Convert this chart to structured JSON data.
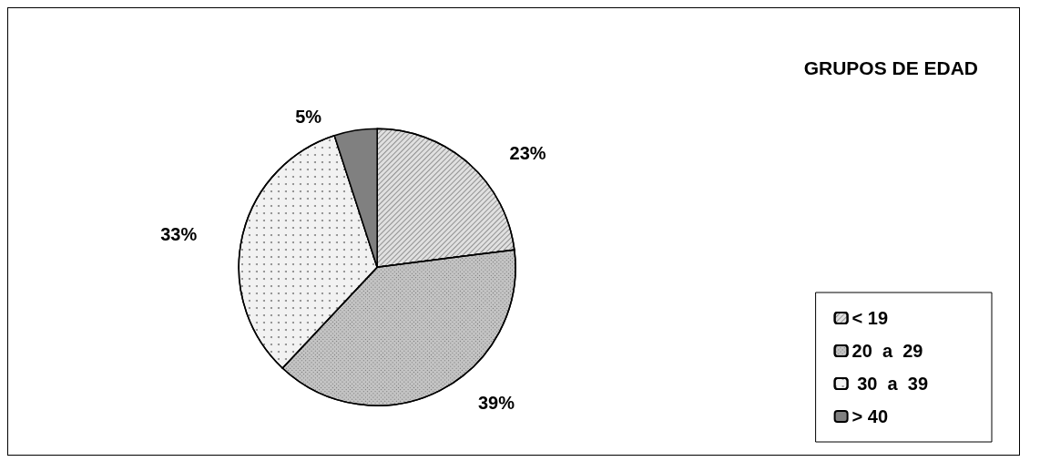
{
  "chart_data": {
    "type": "pie",
    "legend_title": "GRUPOS DE EDAD",
    "categories": [
      "< 19",
      "20  a  29",
      " 30  a  39",
      "> 40"
    ],
    "values": [
      23,
      39,
      33,
      5
    ],
    "value_labels": [
      "23%",
      "39%",
      "33%",
      "5%"
    ],
    "colors": [
      "#e0e0e0",
      "#c4c4c4",
      "#f2f2f2",
      "#808080"
    ],
    "legend": "bottom right"
  }
}
